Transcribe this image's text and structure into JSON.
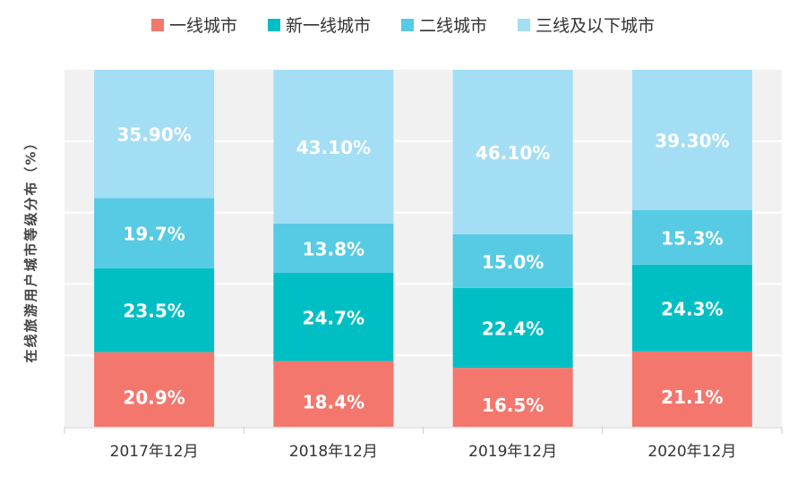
{
  "chart_data": {
    "type": "bar",
    "stacked": true,
    "categories": [
      "2017年12月",
      "2018年12月",
      "2019年12月",
      "2020年12月"
    ],
    "ylabel": "在线旅游用户城市等级分布（%）",
    "ylim": [
      0,
      100
    ],
    "grid": true,
    "legend_position": "top",
    "series": [
      {
        "name": "一线城市",
        "color": "#f4776e",
        "values": [
          20.9,
          18.4,
          16.5,
          21.1
        ],
        "labels": [
          "20.9%",
          "18.4%",
          "16.5%",
          "21.1%"
        ]
      },
      {
        "name": "新一线城市",
        "color": "#00bfc4",
        "values": [
          23.5,
          24.7,
          22.4,
          24.3
        ],
        "labels": [
          "23.5%",
          "24.7%",
          "22.4%",
          "24.3%"
        ]
      },
      {
        "name": "二线城市",
        "color": "#56cbe3",
        "values": [
          19.7,
          13.8,
          15.0,
          15.3
        ],
        "labels": [
          "19.7%",
          "13.8%",
          "15.0%",
          "15.3%"
        ]
      },
      {
        "name": "三线及以下城市",
        "color": "#a3def5",
        "values": [
          35.9,
          43.1,
          46.1,
          39.3
        ],
        "labels": [
          "35.90%",
          "43.10%",
          "46.10%",
          "39.30%"
        ]
      }
    ]
  }
}
